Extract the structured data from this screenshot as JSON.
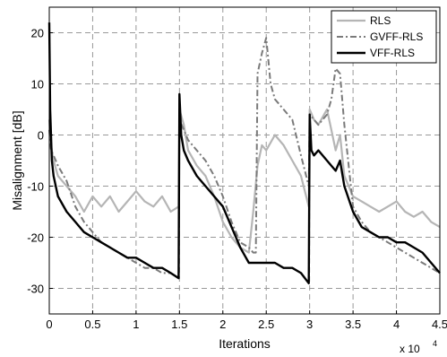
{
  "chart_data": {
    "type": "line",
    "title": "",
    "xlabel": "Iterations",
    "ylabel": "Misalignment [dB]",
    "x_multiplier_label": "x 10",
    "x_multiplier_exponent": "4",
    "xlim": [
      0,
      4.5
    ],
    "ylim": [
      -35,
      25
    ],
    "xticks": [
      "0",
      "0.5",
      "1",
      "1.5",
      "2",
      "2.5",
      "3",
      "3.5",
      "4",
      "4.5"
    ],
    "yticks": [
      "-30",
      "-20",
      "-10",
      "0",
      "10",
      "20"
    ],
    "grid": true,
    "legend_position": "top-right",
    "series": [
      {
        "name": "RLS",
        "color": "#b5b5b5",
        "dash": "solid",
        "x": [
          0,
          0.02,
          0.05,
          0.1,
          0.2,
          0.3,
          0.4,
          0.5,
          0.6,
          0.7,
          0.8,
          0.9,
          1.0,
          1.1,
          1.2,
          1.3,
          1.4,
          1.49,
          1.5,
          1.55,
          1.6,
          1.7,
          1.8,
          1.9,
          2.0,
          2.1,
          2.2,
          2.3,
          2.35,
          2.4,
          2.45,
          2.5,
          2.6,
          2.7,
          2.8,
          2.9,
          2.99,
          3.0,
          3.05,
          3.1,
          3.2,
          3.25,
          3.3,
          3.35,
          3.4,
          3.5,
          3.6,
          3.7,
          3.8,
          3.9,
          4.0,
          4.1,
          4.2,
          4.3,
          4.4,
          4.5
        ],
        "y": [
          3,
          -2,
          -5,
          -8,
          -10,
          -12,
          -15,
          -12,
          -14,
          -12,
          -15,
          -13,
          -11,
          -13,
          -14,
          -12,
          -15,
          -14,
          5,
          2,
          -3,
          -6,
          -8,
          -12,
          -17,
          -20,
          -22,
          -23,
          -15,
          -6,
          -2,
          -3,
          0,
          -2,
          -5,
          -8,
          -14,
          5,
          3,
          2,
          5,
          1,
          -3,
          0,
          -8,
          -12,
          -13,
          -14,
          -15,
          -14,
          -13,
          -15,
          -16,
          -15,
          -17,
          -18
        ]
      },
      {
        "name": "GVFF-RLS",
        "color": "#7a7a7a",
        "dash": "dashdot",
        "x": [
          0,
          0.02,
          0.05,
          0.1,
          0.2,
          0.3,
          0.4,
          0.5,
          0.6,
          0.7,
          0.8,
          0.9,
          1.0,
          1.1,
          1.2,
          1.3,
          1.4,
          1.49,
          1.5,
          1.55,
          1.6,
          1.7,
          1.8,
          1.9,
          2.0,
          2.1,
          2.2,
          2.3,
          2.35,
          2.38,
          2.4,
          2.45,
          2.5,
          2.55,
          2.6,
          2.7,
          2.8,
          2.9,
          2.99,
          3.0,
          3.05,
          3.1,
          3.2,
          3.25,
          3.3,
          3.35,
          3.4,
          3.5,
          3.6,
          3.7,
          3.8,
          3.9,
          4.0,
          4.1,
          4.2,
          4.3,
          4.4,
          4.5
        ],
        "y": [
          1,
          -3,
          -4,
          -6,
          -9,
          -14,
          -17,
          -19,
          -21,
          -22,
          -23,
          -24,
          -25,
          -26,
          -26,
          -27,
          -27,
          -28,
          3,
          1,
          -1,
          -3,
          -5,
          -8,
          -12,
          -17,
          -21,
          -22,
          -23,
          -23,
          12,
          16,
          19,
          10,
          7,
          5,
          3,
          -4,
          -10,
          4,
          3,
          2,
          4,
          7,
          13,
          12,
          2,
          -14,
          -17,
          -19,
          -20,
          -21,
          -22,
          -23,
          -24,
          -25,
          -26,
          -27
        ]
      },
      {
        "name": "VFF-RLS",
        "color": "#000000",
        "dash": "solid",
        "x": [
          0,
          0.01,
          0.03,
          0.05,
          0.1,
          0.2,
          0.3,
          0.4,
          0.5,
          0.6,
          0.7,
          0.8,
          0.9,
          1.0,
          1.1,
          1.2,
          1.3,
          1.4,
          1.49,
          1.5,
          1.52,
          1.55,
          1.6,
          1.7,
          1.8,
          1.9,
          2.0,
          2.1,
          2.2,
          2.3,
          2.4,
          2.5,
          2.6,
          2.7,
          2.8,
          2.9,
          2.99,
          3.0,
          3.02,
          3.05,
          3.1,
          3.2,
          3.3,
          3.35,
          3.4,
          3.5,
          3.6,
          3.7,
          3.8,
          3.9,
          4.0,
          4.1,
          4.2,
          4.3,
          4.4,
          4.5
        ],
        "y": [
          22,
          5,
          -5,
          -8,
          -12,
          -15,
          -17,
          -19,
          -20,
          -21,
          -22,
          -23,
          -24,
          -24,
          -25,
          -26,
          -26,
          -27,
          -28,
          8,
          0,
          -3,
          -5,
          -8,
          -10,
          -12,
          -14,
          -18,
          -22,
          -25,
          -25,
          -25,
          -25,
          -26,
          -26,
          -27,
          -29,
          4,
          -3,
          -4,
          -3,
          -5,
          -7,
          -5,
          -10,
          -15,
          -18,
          -19,
          -20,
          -20,
          -21,
          -21,
          -22,
          -23,
          -25,
          -27
        ]
      }
    ]
  }
}
